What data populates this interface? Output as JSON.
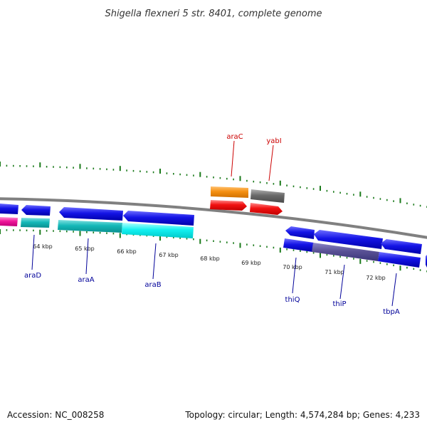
{
  "title": "Shigella flexneri 5 str. 8401, complete genome",
  "footer": {
    "accession": "Accession: NC_008258",
    "summary": "Topology: circular; Length: 4,574,284 bp; Genes: 4,233"
  },
  "colors": {
    "background": "#ffffff",
    "backbone": "#808080",
    "tick": "#1a7a1a",
    "forward_label": "#cc0000",
    "reverse_label": "#000099"
  },
  "scale_labels": [
    "64 kbp",
    "65 kbp",
    "66 kbp",
    "67 kbp",
    "68 kbp",
    "69 kbp",
    "70 kbp",
    "71 kbp",
    "72 kbp"
  ],
  "gene_labels": {
    "forward": [
      "araC",
      "yabI"
    ],
    "reverse": [
      "araD",
      "araA",
      "araB",
      "thiQ",
      "thiP",
      "tbpA"
    ]
  },
  "legend_note": ""
}
